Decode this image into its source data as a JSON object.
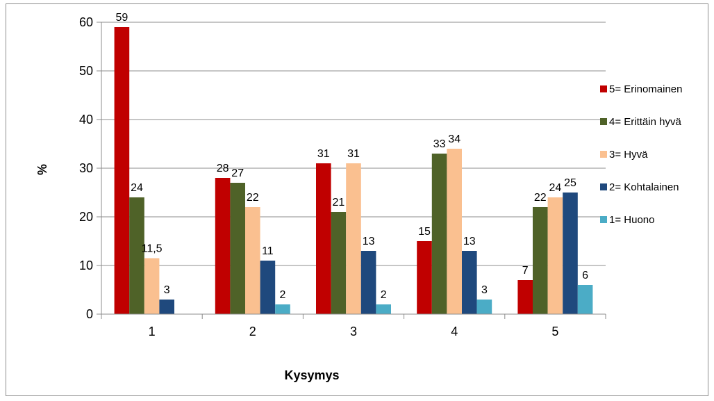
{
  "chart_data": {
    "type": "bar",
    "title": "",
    "xlabel": "Kysymys",
    "ylabel": "%",
    "ylim": [
      0,
      60
    ],
    "yticks": [
      0,
      10,
      20,
      30,
      40,
      50,
      60
    ],
    "grid": true,
    "legend_position": "right",
    "categories": [
      "1",
      "2",
      "3",
      "4",
      "5"
    ],
    "series": [
      {
        "name": "5= Erinomainen",
        "color": "#C00000",
        "values": [
          59,
          28,
          31,
          15,
          7
        ],
        "labels": [
          "59",
          "28",
          "31",
          "15",
          "7"
        ]
      },
      {
        "name": "4= Erittäin hyvä",
        "color": "#4F6228",
        "values": [
          24,
          27,
          21,
          33,
          22
        ],
        "labels": [
          "24",
          "27",
          "21",
          "33",
          "22"
        ]
      },
      {
        "name": "3= Hyvä",
        "color": "#FAC090",
        "values": [
          11.5,
          22,
          31,
          34,
          24
        ],
        "labels": [
          "11,5",
          "22",
          "31",
          "34",
          "24"
        ]
      },
      {
        "name": "2= Kohtalainen",
        "color": "#1F497D",
        "values": [
          3,
          11,
          13,
          13,
          25
        ],
        "labels": [
          "3",
          "11",
          "13",
          "13",
          "25"
        ]
      },
      {
        "name": "1= Huono",
        "color": "#4BACC6",
        "values": [
          null,
          2,
          2,
          3,
          6
        ],
        "labels": [
          "",
          "2",
          "2",
          "3",
          "6"
        ]
      }
    ]
  }
}
